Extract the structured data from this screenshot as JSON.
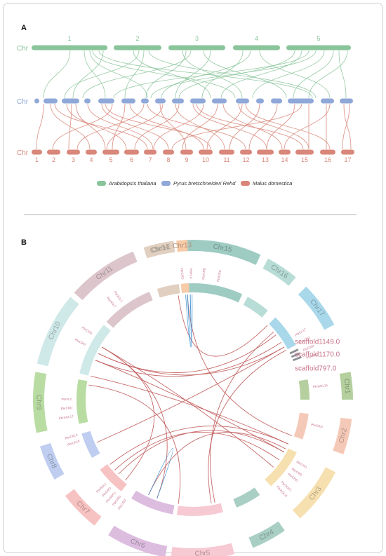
{
  "panel_a": {
    "letter": "A",
    "rows": [
      {
        "label": "Chr",
        "color": "#8ac49a",
        "numbers": [
          "1",
          "2",
          "3",
          "4",
          "5"
        ]
      },
      {
        "label": "Chr",
        "color": "#8fa8d8",
        "numbers": []
      },
      {
        "label": "Chr",
        "color": "#d8877a",
        "numbers": [
          "1",
          "2",
          "3",
          "4",
          "5",
          "6",
          "7",
          "8",
          "9",
          "10",
          "11",
          "12",
          "13",
          "14",
          "15",
          "16",
          "17"
        ]
      }
    ],
    "legend": [
      {
        "name": "Arabidopsis thaliana",
        "color": "#8ac49a"
      },
      {
        "name": "Pyrus bretschneideri Rehd",
        "color": "#8fa8d8"
      },
      {
        "name": "Malus domestica",
        "color": "#d8877a"
      }
    ]
  },
  "panel_b": {
    "letter": "B",
    "chromosomes": [
      {
        "name": "Chr15",
        "color": "#9ecbc2"
      },
      {
        "name": "Chr16",
        "color": "#b8dcd6"
      },
      {
        "name": "Chr17",
        "color": "#a9d8ea"
      },
      {
        "name": "scaffold1149.0",
        "color": "#9aa0a6"
      },
      {
        "name": "scaffold1170.0",
        "color": "#9aa0a6"
      },
      {
        "name": "scaffold797.0",
        "color": "#9aa0a6"
      },
      {
        "name": "Chr1",
        "color": "#b5cf9e"
      },
      {
        "name": "Chr2",
        "color": "#f5c9b8"
      },
      {
        "name": "Chr3",
        "color": "#f7e0b0"
      },
      {
        "name": "Chr4",
        "color": "#a9cfc4"
      },
      {
        "name": "Chr5",
        "color": "#f7c9d2"
      },
      {
        "name": "Chr6",
        "color": "#dcbcdf"
      },
      {
        "name": "Chr7",
        "color": "#f7c2c2"
      },
      {
        "name": "Chr8",
        "color": "#bfcdf0"
      },
      {
        "name": "Chr9",
        "color": "#b9dca3"
      },
      {
        "name": "Chr10",
        "color": "#cfe8e8"
      },
      {
        "name": "Chr11",
        "color": "#dcc6cc"
      },
      {
        "name": "Chr12",
        "color": "#d6d8cc"
      },
      {
        "name": "Chr13",
        "color": "#f7caa8"
      },
      {
        "name": "Chr14",
        "color": "#e1cfc0"
      }
    ],
    "genes": [
      "PbrCRD",
      "PbrFLC",
      "PbrCRD",
      "PbrCRD",
      "PbrCL17",
      "PbrCRD",
      "PbrCRD",
      "PbrCRD",
      "PbrAGL15",
      "PbrCRD",
      "PbrCRD",
      "PbrCRD",
      "PbrCRD",
      "PbrSOC1",
      "PbrAGL11",
      "PbrCAL8",
      "PbrCAL6",
      "PbrAGL17",
      "PbrCRD",
      "PbrFLC",
      "PbrCRD",
      "PbrCRD",
      "PbrSOC1",
      "PbrCRD",
      "PbrAGL1",
      "PbrCRD",
      "PbrCRD",
      "PbrAGL7",
      "PbrAGL1"
    ]
  }
}
